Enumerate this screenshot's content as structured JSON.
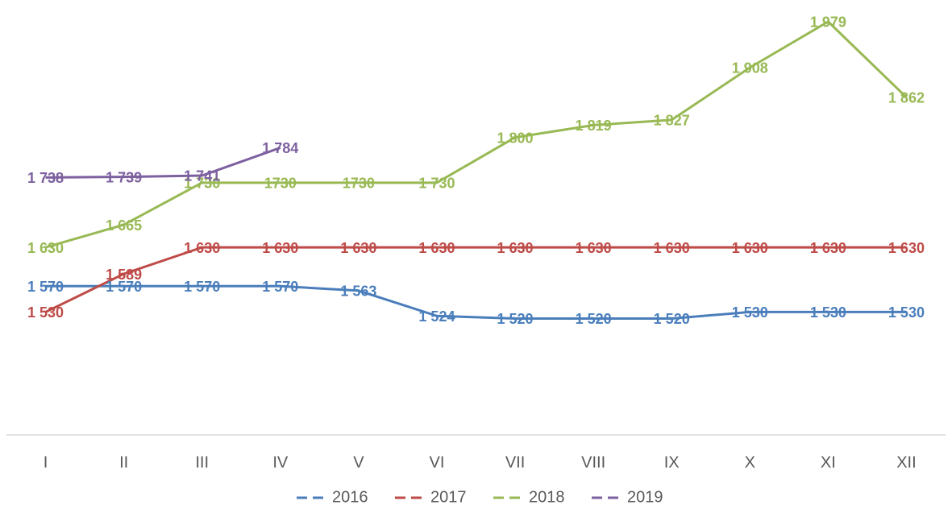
{
  "chart_data": {
    "type": "line",
    "categories": [
      "I",
      "II",
      "III",
      "IV",
      "V",
      "VI",
      "VII",
      "VIII",
      "IX",
      "X",
      "XI",
      "XII"
    ],
    "series": [
      {
        "name": "2016",
        "color": "#4a7ebb",
        "values": [
          1570,
          1570,
          1570,
          1570,
          1563,
          1524,
          1520,
          1520,
          1520,
          1530,
          1530,
          1530
        ],
        "value_labels": [
          "1 570",
          "1 570",
          "1 570",
          "1 570",
          "1 563",
          "1 524",
          "1 520",
          "1 520",
          "1 520",
          "1 530",
          "1 530",
          "1 530"
        ]
      },
      {
        "name": "2017",
        "color": "#be4b48",
        "values": [
          1530,
          1589,
          1630,
          1630,
          1630,
          1630,
          1630,
          1630,
          1630,
          1630,
          1630,
          1630
        ],
        "value_labels": [
          "1 530",
          "1 589",
          "1 630",
          "1 630",
          "1 630",
          "1 630",
          "1 630",
          "1 630",
          "1 630",
          "1 630",
          "1 630",
          "1 630"
        ]
      },
      {
        "name": "2018",
        "color": "#98b954",
        "values": [
          1630,
          1665,
          1730,
          1730,
          1730,
          1730,
          1800,
          1819,
          1827,
          1908,
          1979,
          1862
        ],
        "value_labels": [
          "1 630",
          "1 665",
          "1 730",
          "1730",
          "1730",
          "1 730",
          "1 800",
          "1 819",
          "1 827",
          "1 908",
          "1 979",
          "1 862"
        ]
      },
      {
        "name": "2019",
        "color": "#7d60a0",
        "values": [
          1738,
          1739,
          1741,
          1784,
          null,
          null,
          null,
          null,
          null,
          null,
          null,
          null
        ],
        "value_labels": [
          "1 738",
          "1 739",
          "1 741",
          "1 784",
          null,
          null,
          null,
          null,
          null,
          null,
          null,
          null
        ]
      }
    ],
    "ylim": [
      1340,
      2000
    ],
    "legend": "bottom"
  }
}
